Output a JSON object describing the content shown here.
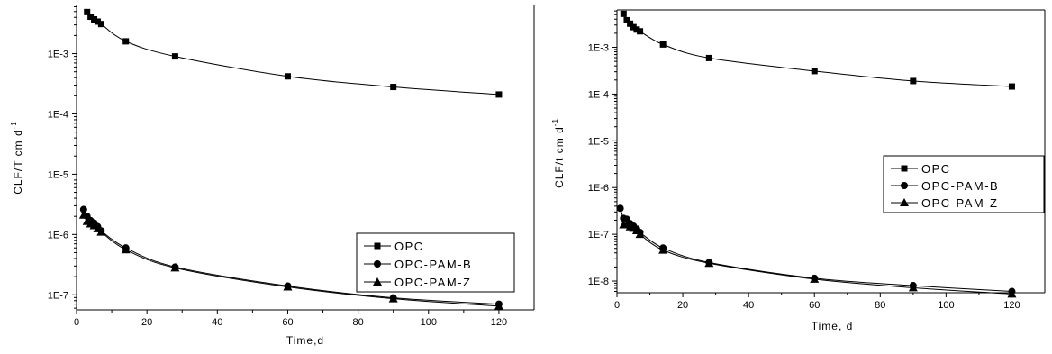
{
  "chart_data": [
    {
      "type": "scatter",
      "yscale": "log",
      "xlabel": "Time,d",
      "ylabel": "CLF/T cm d",
      "ylabel_sup": "-1",
      "xlim": [
        0,
        130
      ],
      "ylim_log10": [
        -7.25,
        -2.2
      ],
      "xticks": [
        0,
        20,
        40,
        60,
        80,
        100,
        120
      ],
      "ytick_exponents": [
        -7,
        -6,
        -5,
        -4,
        -3
      ],
      "ytick_labels": [
        "1E-7",
        "1E-6",
        "1E-5",
        "1E-4",
        "1E-3"
      ],
      "legend_position": "right",
      "series": [
        {
          "name": "OPC",
          "marker": "square",
          "x": [
            3,
            4,
            5,
            6,
            7,
            14,
            28,
            60,
            90,
            120
          ],
          "y": [
            0.0049,
            0.0041,
            0.0037,
            0.0034,
            0.0031,
            0.0016,
            0.0009,
            0.00042,
            0.00028,
            0.00021
          ]
        },
        {
          "name": "OPC-PAM-B",
          "marker": "circle",
          "x": [
            2,
            3,
            4,
            5,
            6,
            7,
            14,
            28,
            60,
            90,
            120
          ],
          "y": [
            2.6e-06,
            2e-06,
            1.7e-06,
            1.55e-06,
            1.35e-06,
            1.15e-06,
            6e-07,
            2.9e-07,
            1.4e-07,
            8.9e-08,
            7e-08
          ]
        },
        {
          "name": "OPC-PAM-Z",
          "marker": "triangle",
          "x": [
            2,
            3,
            4,
            5,
            6,
            7,
            14,
            28,
            60,
            90,
            120
          ],
          "y": [
            2.1e-06,
            1.65e-06,
            1.5e-06,
            1.4e-06,
            1.25e-06,
            1.1e-06,
            5.6e-07,
            2.8e-07,
            1.35e-07,
            8.6e-08,
            6.5e-08
          ]
        }
      ]
    },
    {
      "type": "scatter",
      "yscale": "log",
      "xlabel": "Time, d",
      "ylabel": "CLF/t cm d",
      "ylabel_sup": "-1",
      "xlim": [
        0,
        130
      ],
      "ylim_log10": [
        -8.25,
        -2.2
      ],
      "xticks": [
        0,
        20,
        40,
        60,
        80,
        100,
        120
      ],
      "ytick_exponents": [
        -8,
        -7,
        -6,
        -5,
        -4,
        -3
      ],
      "ytick_labels": [
        "1E-8",
        "1E-7",
        "1E-6",
        "1E-5",
        "1E-4",
        "1E-3"
      ],
      "legend_position": "right",
      "series": [
        {
          "name": "OPC",
          "marker": "square",
          "x": [
            2,
            3,
            4,
            5,
            6,
            7,
            14,
            28,
            60,
            90,
            120
          ],
          "y": [
            0.0052,
            0.0038,
            0.0032,
            0.0027,
            0.0024,
            0.0022,
            0.00115,
            0.00059,
            0.00031,
            0.00019,
            0.000145
          ]
        },
        {
          "name": "OPC-PAM-B",
          "marker": "circle",
          "x": [
            1,
            2,
            3,
            4,
            5,
            6,
            7,
            14,
            28,
            60,
            90,
            120
          ],
          "y": [
            3.6e-07,
            2.2e-07,
            2.1e-07,
            1.7e-07,
            1.5e-07,
            1.3e-07,
            1.1e-07,
            5.1e-08,
            2.5e-08,
            1.15e-08,
            8e-09,
            6e-09
          ]
        },
        {
          "name": "OPC-PAM-Z",
          "marker": "triangle",
          "x": [
            2,
            3,
            4,
            5,
            6,
            7,
            14,
            28,
            60,
            90,
            120
          ],
          "y": [
            1.6e-07,
            1.6e-07,
            1.45e-07,
            1.35e-07,
            1.2e-07,
            1e-07,
            4.6e-08,
            2.4e-08,
            1.1e-08,
            7.2e-09,
            5.3e-09
          ]
        }
      ]
    }
  ]
}
